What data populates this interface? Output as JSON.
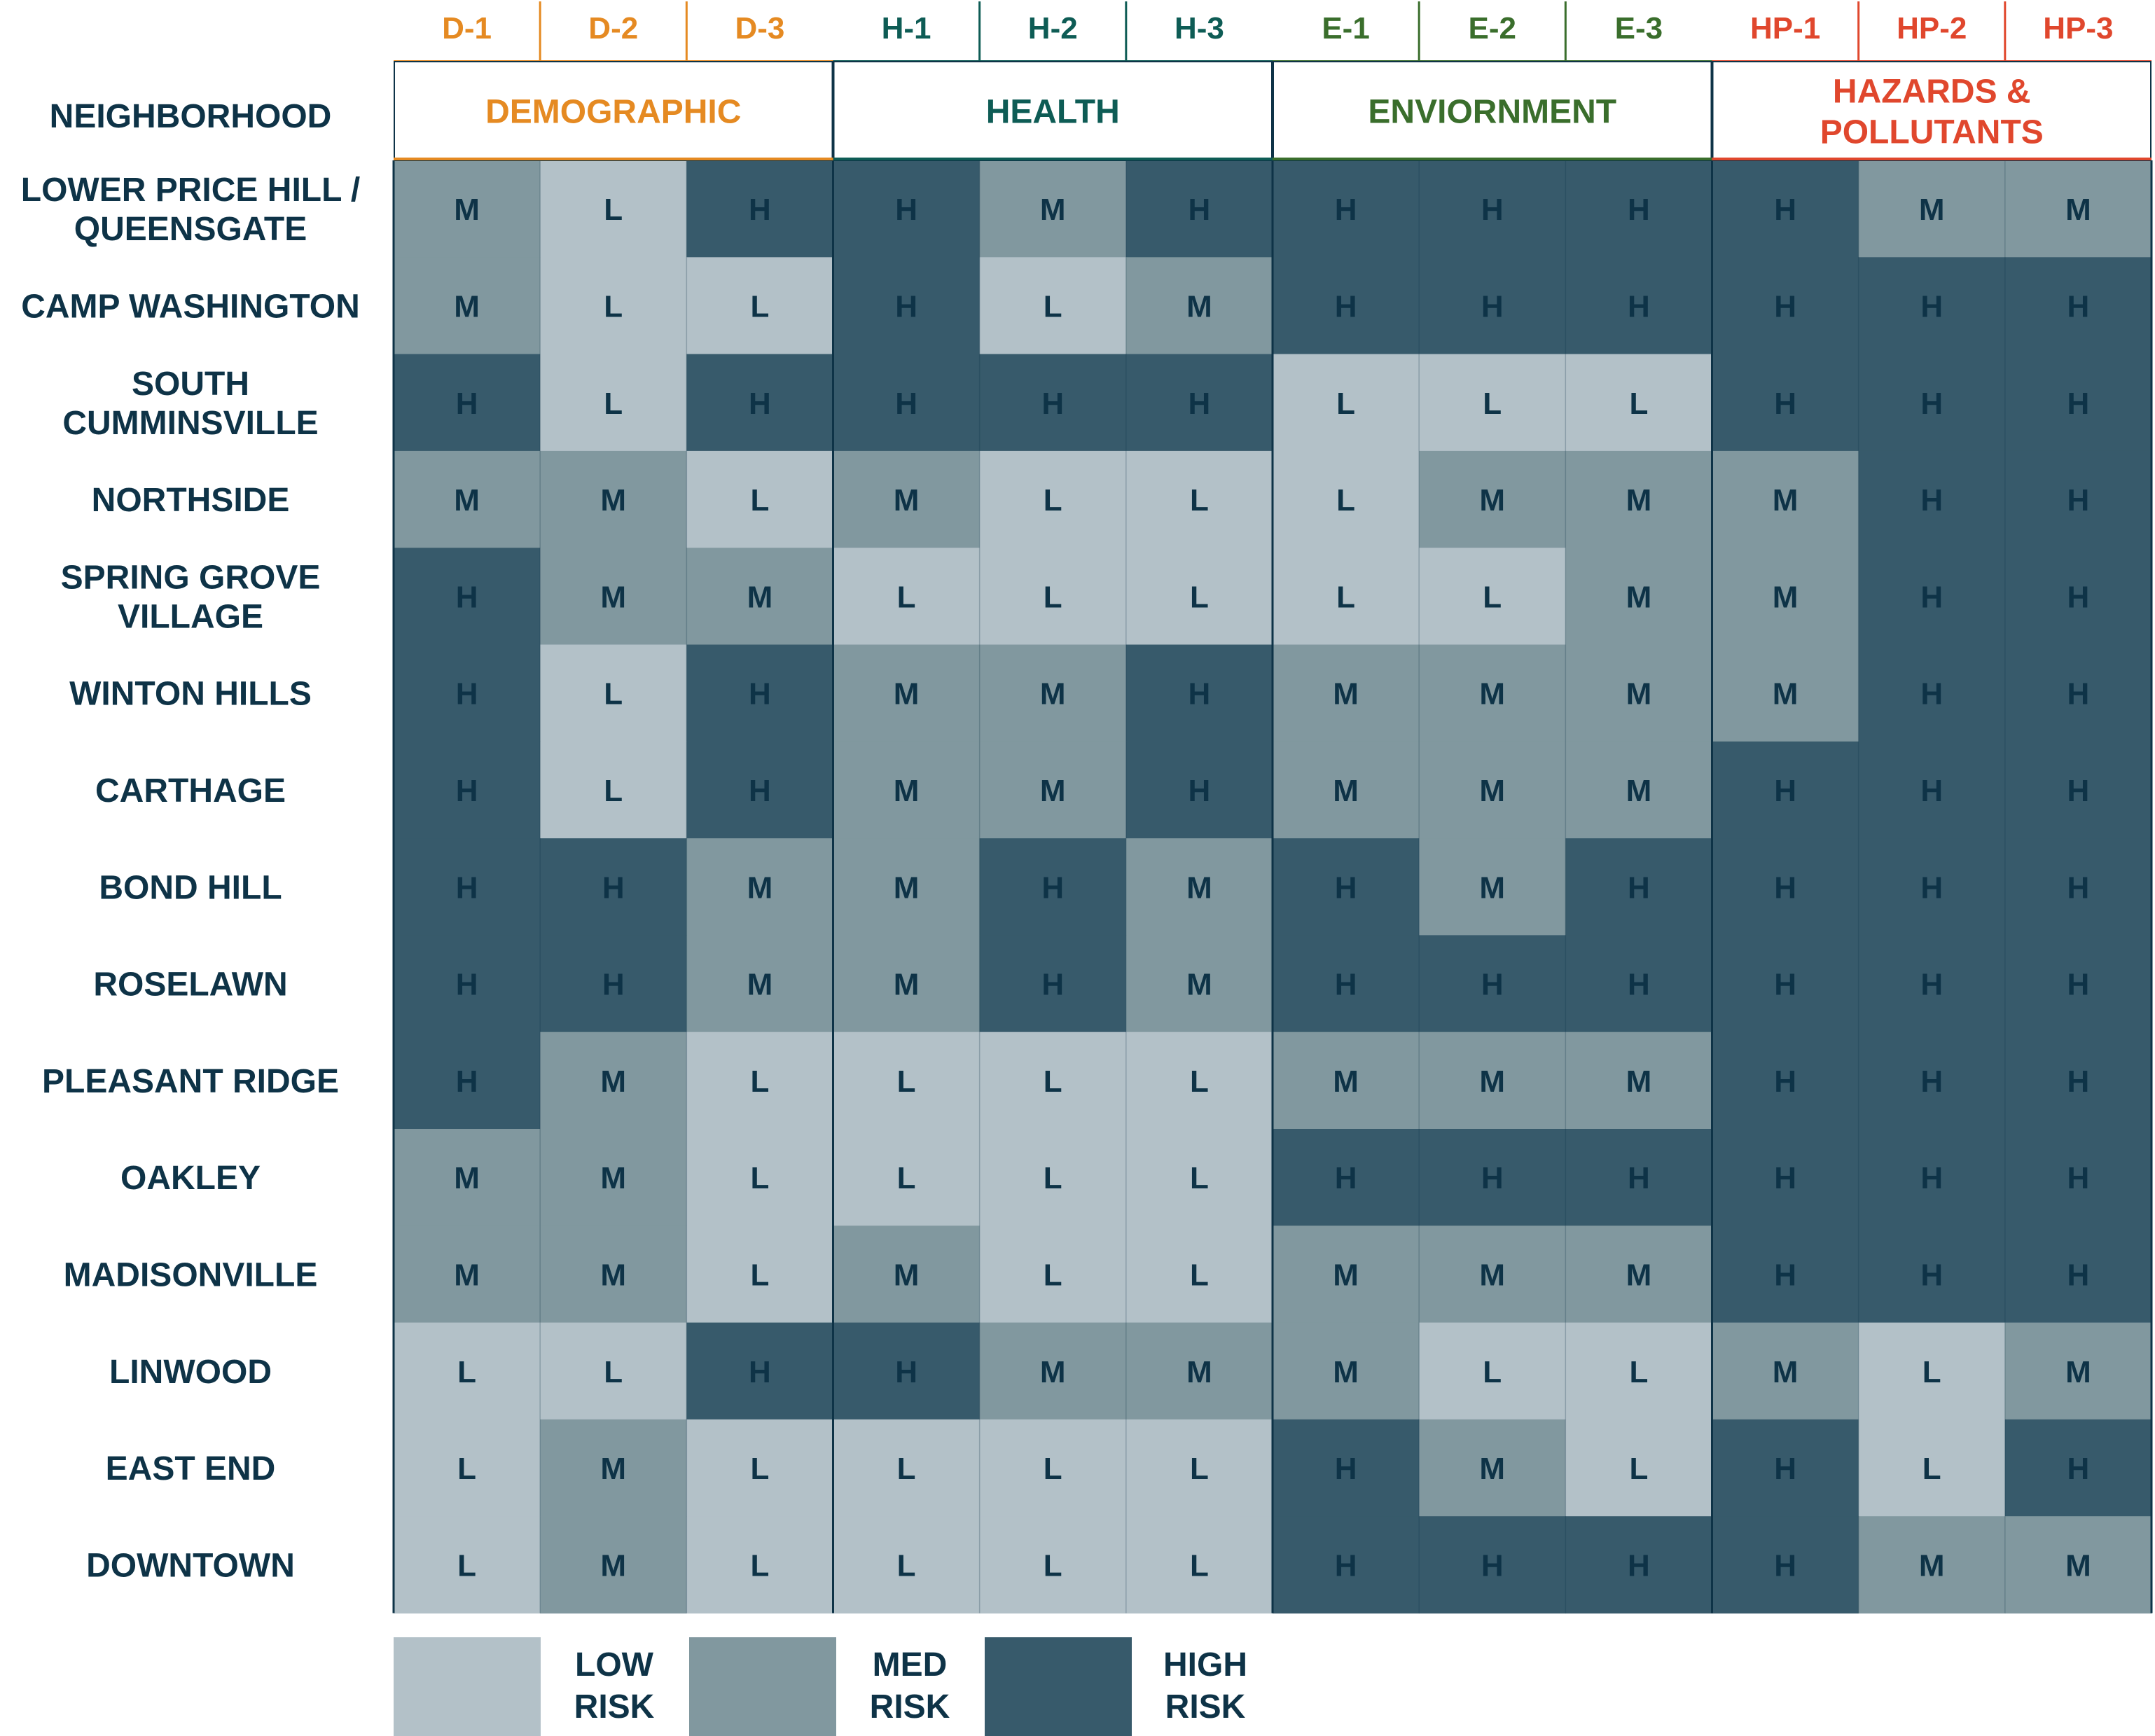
{
  "chart_data": {
    "type": "heatmap",
    "row_header": "NEIGHBORHOOD",
    "groups": [
      {
        "name": "DEMOGRAPHIC",
        "color": "#e58a22",
        "codes": [
          "D-1",
          "D-2",
          "D-3"
        ]
      },
      {
        "name": "HEALTH",
        "color": "#0e5c55",
        "codes": [
          "H-1",
          "H-2",
          "H-3"
        ]
      },
      {
        "name": "ENVIORNMENT",
        "color": "#3a6e2c",
        "codes": [
          "E-1",
          "E-2",
          "E-3"
        ]
      },
      {
        "name": "HAZARDS & POLLUTANTS",
        "color": "#e0472d",
        "codes": [
          "HP-1",
          "HP-2",
          "HP-3"
        ]
      }
    ],
    "rows": [
      {
        "name": [
          "LOWER PRICE HILL /",
          "QUEENSGATE"
        ],
        "values": [
          "M",
          "L",
          "H",
          "H",
          "M",
          "H",
          "H",
          "H",
          "H",
          "H",
          "M",
          "M"
        ]
      },
      {
        "name": [
          "CAMP WASHINGTON"
        ],
        "values": [
          "M",
          "L",
          "L",
          "H",
          "L",
          "M",
          "H",
          "H",
          "H",
          "H",
          "H",
          "H"
        ]
      },
      {
        "name": [
          "SOUTH",
          "CUMMINSVILLE"
        ],
        "values": [
          "H",
          "L",
          "H",
          "H",
          "H",
          "H",
          "L",
          "L",
          "L",
          "H",
          "H",
          "H"
        ]
      },
      {
        "name": [
          "NORTHSIDE"
        ],
        "values": [
          "M",
          "M",
          "L",
          "M",
          "L",
          "L",
          "L",
          "M",
          "M",
          "M",
          "H",
          "H"
        ]
      },
      {
        "name": [
          "SPRING GROVE",
          "VILLAGE"
        ],
        "values": [
          "H",
          "M",
          "M",
          "L",
          "L",
          "L",
          "L",
          "L",
          "M",
          "M",
          "H",
          "H"
        ]
      },
      {
        "name": [
          "WINTON HILLS"
        ],
        "values": [
          "H",
          "L",
          "H",
          "M",
          "M",
          "H",
          "M",
          "M",
          "M",
          "M",
          "H",
          "H"
        ]
      },
      {
        "name": [
          "CARTHAGE"
        ],
        "values": [
          "H",
          "L",
          "H",
          "M",
          "M",
          "H",
          "M",
          "M",
          "M",
          "H",
          "H",
          "H"
        ]
      },
      {
        "name": [
          "BOND HILL"
        ],
        "values": [
          "H",
          "H",
          "M",
          "M",
          "H",
          "M",
          "H",
          "M",
          "H",
          "H",
          "H",
          "H"
        ]
      },
      {
        "name": [
          "ROSELAWN"
        ],
        "values": [
          "H",
          "H",
          "M",
          "M",
          "H",
          "M",
          "H",
          "H",
          "H",
          "H",
          "H",
          "H"
        ]
      },
      {
        "name": [
          "PLEASANT RIDGE"
        ],
        "values": [
          "H",
          "M",
          "L",
          "L",
          "L",
          "L",
          "M",
          "M",
          "M",
          "H",
          "H",
          "H"
        ]
      },
      {
        "name": [
          "OAKLEY"
        ],
        "values": [
          "M",
          "M",
          "L",
          "L",
          "L",
          "L",
          "H",
          "H",
          "H",
          "H",
          "H",
          "H"
        ]
      },
      {
        "name": [
          "MADISONVILLE"
        ],
        "values": [
          "M",
          "M",
          "L",
          "M",
          "L",
          "L",
          "M",
          "M",
          "M",
          "H",
          "H",
          "H"
        ]
      },
      {
        "name": [
          "LINWOOD"
        ],
        "values": [
          "L",
          "L",
          "H",
          "H",
          "M",
          "M",
          "M",
          "L",
          "L",
          "M",
          "L",
          "M"
        ]
      },
      {
        "name": [
          "EAST END"
        ],
        "values": [
          "L",
          "M",
          "L",
          "L",
          "L",
          "L",
          "H",
          "M",
          "L",
          "H",
          "L",
          "H"
        ]
      },
      {
        "name": [
          "DOWNTOWN"
        ],
        "values": [
          "L",
          "M",
          "L",
          "L",
          "L",
          "L",
          "H",
          "H",
          "H",
          "H",
          "M",
          "M"
        ]
      }
    ],
    "levels": {
      "L": {
        "color": "#b3c1c8",
        "legend": [
          "LOW",
          "RISK"
        ]
      },
      "M": {
        "color": "#81989f",
        "legend": [
          "MED",
          "RISK"
        ]
      },
      "H": {
        "color": "#375a6b",
        "legend": [
          "HIGH",
          "RISK"
        ]
      }
    },
    "text_color": "#0e3347"
  }
}
